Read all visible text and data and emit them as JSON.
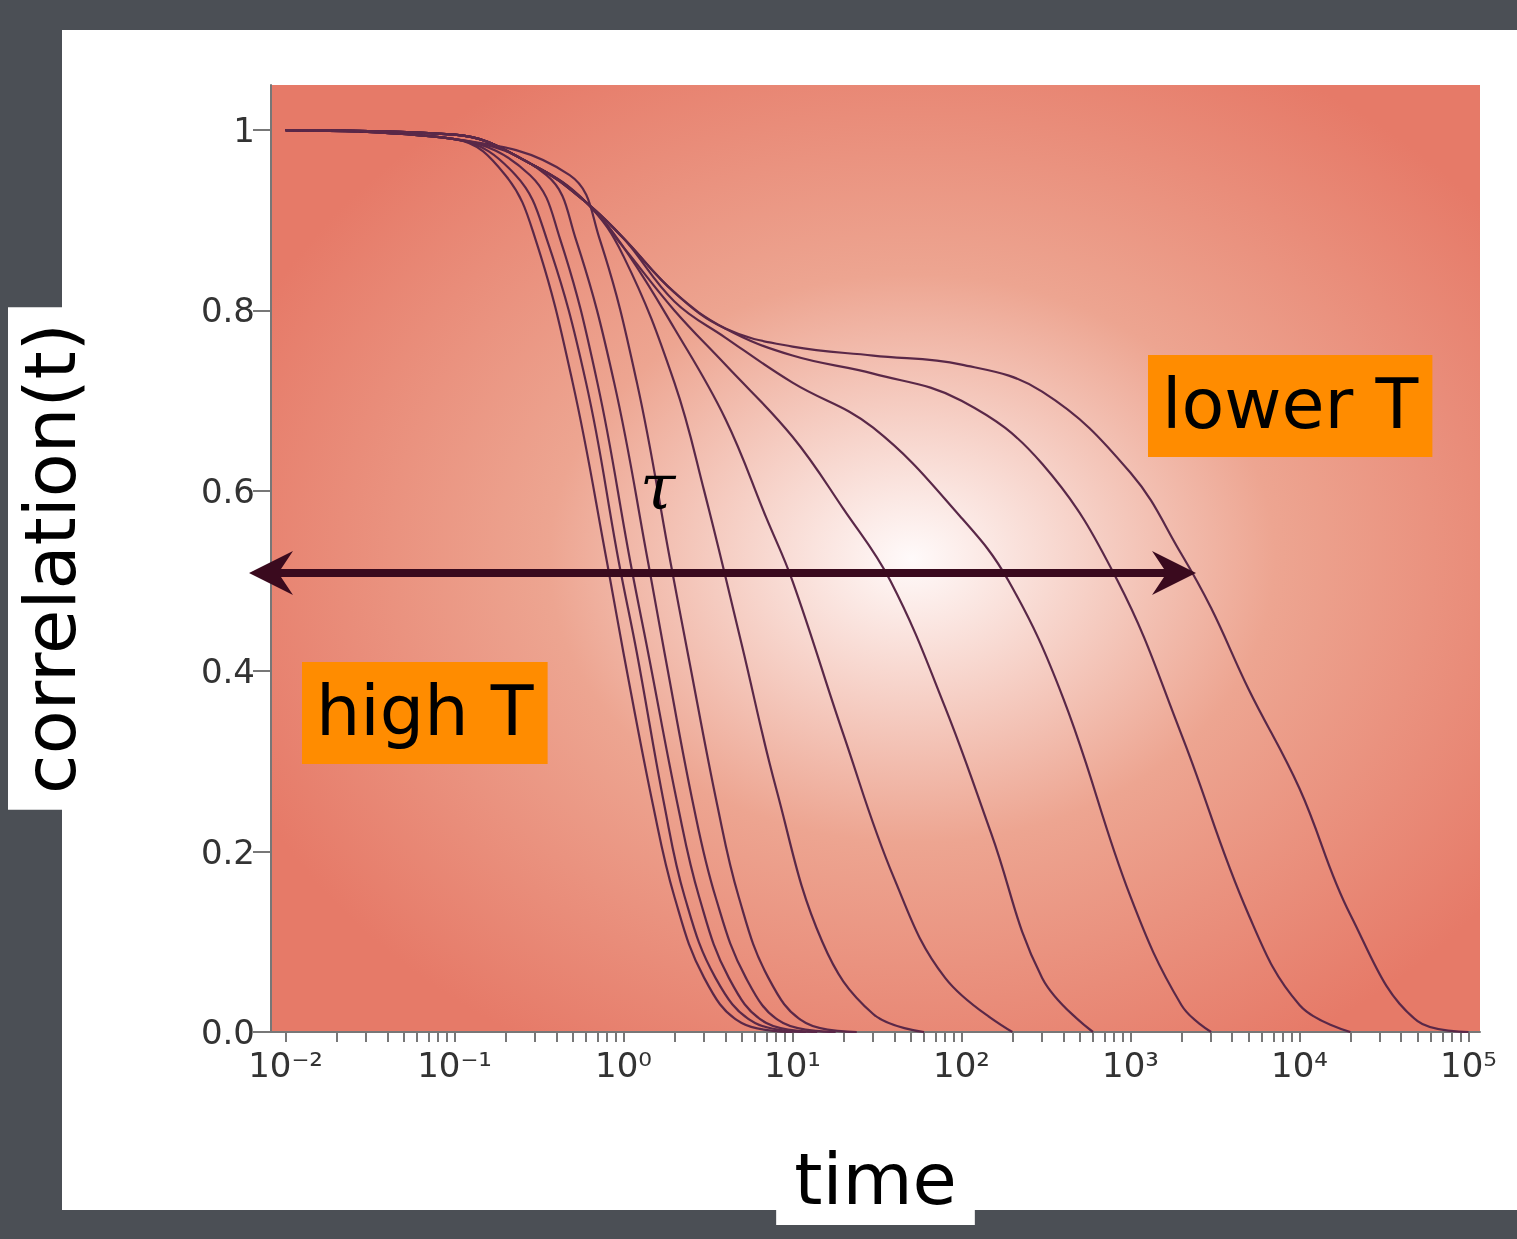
{
  "chart_data": {
    "type": "line",
    "xlabel": "time",
    "ylabel": "correlation(t)",
    "log": "x",
    "marker": "none",
    "grid": false,
    "annotations": [
      "τ",
      "high T",
      "lower T"
    ],
    "xlim": [
      0.0082,
      117000
    ],
    "ylim": [
      0,
      1.05
    ],
    "xticks": [
      {
        "value": 0.01,
        "label": "10⁻²"
      },
      {
        "value": 0.02,
        "label": null
      },
      {
        "value": 0.03,
        "label": null
      },
      {
        "value": 0.04,
        "label": null
      },
      {
        "value": 0.05,
        "label": null
      },
      {
        "value": 0.06,
        "label": null
      },
      {
        "value": 0.07,
        "label": null
      },
      {
        "value": 0.08,
        "label": null
      },
      {
        "value": 0.09,
        "label": null
      },
      {
        "value": 0.1,
        "label": "10⁻¹"
      },
      {
        "value": 0.2,
        "label": null
      },
      {
        "value": 0.3,
        "label": null
      },
      {
        "value": 0.4,
        "label": null
      },
      {
        "value": 0.5,
        "label": null
      },
      {
        "value": 0.6,
        "label": null
      },
      {
        "value": 0.7,
        "label": null
      },
      {
        "value": 0.8,
        "label": null
      },
      {
        "value": 0.9,
        "label": null
      },
      {
        "value": 1,
        "label": "10⁰"
      },
      {
        "value": 2,
        "label": null
      },
      {
        "value": 3,
        "label": null
      },
      {
        "value": 4,
        "label": null
      },
      {
        "value": 5,
        "label": null
      },
      {
        "value": 6,
        "label": null
      },
      {
        "value": 7,
        "label": null
      },
      {
        "value": 8,
        "label": null
      },
      {
        "value": 9,
        "label": null
      },
      {
        "value": 10,
        "label": "10¹"
      },
      {
        "value": 20,
        "label": null
      },
      {
        "value": 30,
        "label": null
      },
      {
        "value": 40,
        "label": null
      },
      {
        "value": 50,
        "label": null
      },
      {
        "value": 60,
        "label": null
      },
      {
        "value": 70,
        "label": null
      },
      {
        "value": 80,
        "label": null
      },
      {
        "value": 90,
        "label": null
      },
      {
        "value": 100,
        "label": "10²"
      },
      {
        "value": 200,
        "label": null
      },
      {
        "value": 300,
        "label": null
      },
      {
        "value": 400,
        "label": null
      },
      {
        "value": 500,
        "label": null
      },
      {
        "value": 600,
        "label": null
      },
      {
        "value": 700,
        "label": null
      },
      {
        "value": 800,
        "label": null
      },
      {
        "value": 900,
        "label": null
      },
      {
        "value": 1000,
        "label": "10³"
      },
      {
        "value": 2000,
        "label": null
      },
      {
        "value": 3000,
        "label": null
      },
      {
        "value": 4000,
        "label": null
      },
      {
        "value": 5000,
        "label": null
      },
      {
        "value": 6000,
        "label": null
      },
      {
        "value": 7000,
        "label": null
      },
      {
        "value": 8000,
        "label": null
      },
      {
        "value": 9000,
        "label": null
      },
      {
        "value": 10000,
        "label": "10⁴"
      },
      {
        "value": 20000,
        "label": null
      },
      {
        "value": 30000,
        "label": null
      },
      {
        "value": 40000,
        "label": null
      },
      {
        "value": 50000,
        "label": null
      },
      {
        "value": 60000,
        "label": null
      },
      {
        "value": 70000,
        "label": null
      },
      {
        "value": 80000,
        "label": null
      },
      {
        "value": 90000,
        "label": null
      },
      {
        "value": 100000,
        "label": "10⁵"
      }
    ],
    "yticks": [
      {
        "value": 0,
        "label": "0.0"
      },
      0.2,
      0.4,
      0.6,
      0.8,
      1
    ],
    "series": [
      {
        "color": "#5a2848",
        "x": [
          0.01,
          0.1,
          0.2,
          0.3,
          0.5,
          0.8,
          1,
          1.5,
          2,
          3,
          5,
          10
        ],
        "values": [
          1,
          0.99,
          0.95,
          0.88,
          0.72,
          0.52,
          0.42,
          0.25,
          0.15,
          0.06,
          0.01,
          0
        ]
      },
      {
        "color": "#5a2848",
        "x": [
          0.01,
          0.1,
          0.23,
          0.35,
          0.6,
          0.94,
          1.2,
          1.75,
          2.3,
          3.5,
          6,
          12
        ],
        "values": [
          1,
          0.99,
          0.95,
          0.88,
          0.72,
          0.52,
          0.42,
          0.25,
          0.15,
          0.06,
          0.01,
          0
        ]
      },
      {
        "color": "#5a2848",
        "x": [
          0.01,
          0.1,
          0.28,
          0.42,
          0.7,
          1.1,
          1.4,
          2.1,
          2.8,
          4.2,
          7,
          14
        ],
        "values": [
          1,
          0.99,
          0.95,
          0.88,
          0.72,
          0.52,
          0.42,
          0.25,
          0.15,
          0.06,
          0.01,
          0
        ]
      },
      {
        "color": "#5a2848",
        "x": [
          0.01,
          0.1,
          0.35,
          0.52,
          0.88,
          1.4,
          1.75,
          2.6,
          3.5,
          5.3,
          8.8,
          18
        ],
        "values": [
          1,
          0.99,
          0.95,
          0.88,
          0.72,
          0.52,
          0.42,
          0.25,
          0.15,
          0.06,
          0.01,
          0
        ]
      },
      {
        "color": "#5a2848",
        "x": [
          0.01,
          0.1,
          0.48,
          0.72,
          1.2,
          1.9,
          2.4,
          3.6,
          4.8,
          7.2,
          12,
          24
        ],
        "values": [
          1,
          0.99,
          0.95,
          0.88,
          0.72,
          0.52,
          0.42,
          0.25,
          0.15,
          0.06,
          0.01,
          0
        ]
      },
      {
        "color": "#5a2848",
        "x": [
          0.01,
          0.1,
          0.3,
          0.6,
          1,
          2,
          3,
          5,
          8,
          15,
          30,
          60
        ],
        "values": [
          1,
          0.995,
          0.96,
          0.92,
          0.86,
          0.72,
          0.6,
          0.43,
          0.27,
          0.1,
          0.02,
          0
        ]
      },
      {
        "color": "#5a2848",
        "x": [
          0.01,
          0.1,
          0.3,
          0.6,
          1,
          2,
          4,
          7,
          10,
          20,
          40,
          80,
          200
        ],
        "values": [
          1,
          0.995,
          0.96,
          0.92,
          0.87,
          0.78,
          0.68,
          0.57,
          0.5,
          0.33,
          0.17,
          0.06,
          0
        ]
      },
      {
        "color": "#5a2848",
        "x": [
          0.01,
          0.1,
          0.3,
          0.6,
          1,
          2,
          4,
          10,
          20,
          38,
          80,
          150,
          300,
          600
        ],
        "values": [
          1,
          0.995,
          0.96,
          0.92,
          0.87,
          0.8,
          0.74,
          0.66,
          0.58,
          0.5,
          0.36,
          0.22,
          0.06,
          0
        ]
      },
      {
        "color": "#5a2848",
        "x": [
          0.01,
          0.1,
          0.3,
          0.6,
          1,
          2,
          4,
          10,
          30,
          100,
          190,
          400,
          1000,
          2000,
          3000
        ],
        "values": [
          1,
          0.995,
          0.96,
          0.92,
          0.88,
          0.81,
          0.77,
          0.72,
          0.67,
          0.57,
          0.5,
          0.37,
          0.15,
          0.03,
          0
        ]
      },
      {
        "color": "#5a2848",
        "x": [
          0.01,
          0.1,
          0.3,
          0.6,
          1,
          2,
          4,
          10,
          30,
          100,
          300,
          840,
          2000,
          5000,
          10000,
          20000
        ],
        "values": [
          1,
          0.995,
          0.96,
          0.92,
          0.88,
          0.82,
          0.78,
          0.75,
          0.73,
          0.7,
          0.63,
          0.5,
          0.33,
          0.13,
          0.03,
          0
        ]
      },
      {
        "color": "#5a2848",
        "x": [
          0.01,
          0.1,
          0.3,
          0.6,
          1,
          2,
          4,
          10,
          30,
          100,
          300,
          1000,
          2000,
          3000,
          5000,
          10000,
          20000,
          50000,
          100000
        ],
        "values": [
          1,
          0.995,
          0.96,
          0.92,
          0.88,
          0.82,
          0.78,
          0.76,
          0.75,
          0.74,
          0.71,
          0.62,
          0.53,
          0.47,
          0.38,
          0.27,
          0.13,
          0.012,
          0
        ]
      }
    ]
  }
}
